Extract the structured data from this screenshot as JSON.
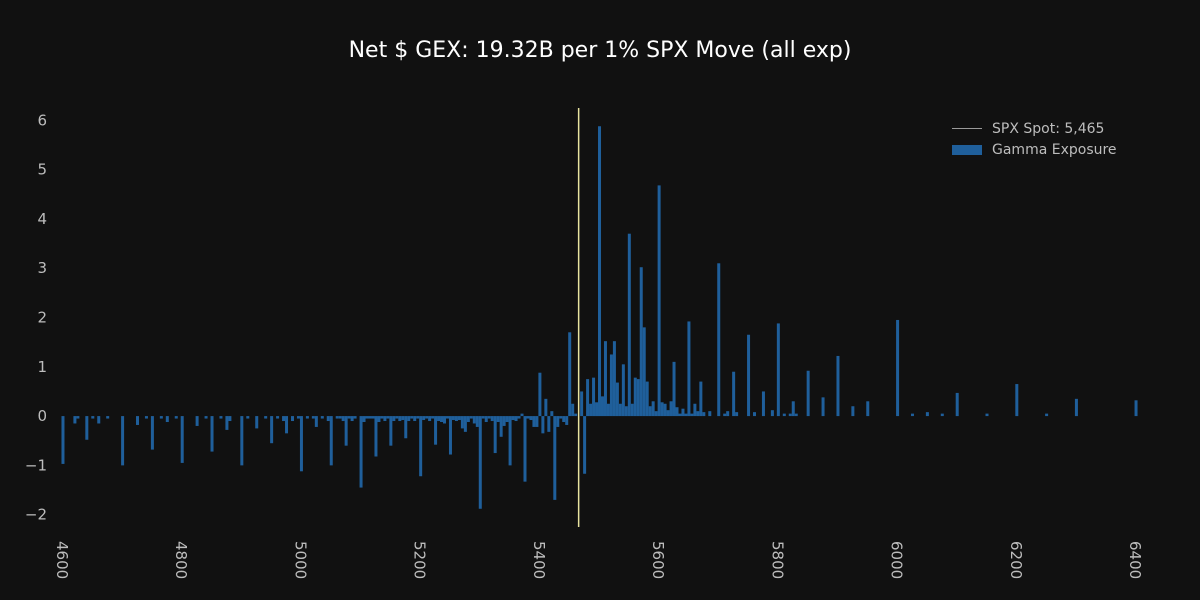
{
  "chart_data": {
    "type": "bar",
    "title": "Net $ GEX: 19.32B per 1% SPX Move (all exp)",
    "xlabel": "",
    "ylabel": "",
    "xlim": [
      4595,
      6410
    ],
    "ylim": [
      -2.25,
      6.25
    ],
    "x_ticks": [
      4600,
      4800,
      5000,
      5200,
      5400,
      5600,
      5800,
      6000,
      6200,
      6400
    ],
    "y_ticks": [
      -2,
      -1,
      0,
      1,
      2,
      3,
      4,
      5,
      6
    ],
    "grid": false,
    "legend_position": "top-right",
    "colors": {
      "background": "#111111",
      "bar": "#1f5f9b",
      "spot_line": "#e8e4a0",
      "text": "#bdbdbd",
      "title": "#ffffff"
    },
    "spot": {
      "label": "SPX Spot: 5,465",
      "value": 5465
    },
    "series": [
      {
        "name": "Gamma Exposure",
        "points": [
          [
            4600,
            -0.97
          ],
          [
            4620,
            -0.15
          ],
          [
            4625,
            -0.05
          ],
          [
            4640,
            -0.48
          ],
          [
            4650,
            -0.05
          ],
          [
            4660,
            -0.15
          ],
          [
            4675,
            -0.05
          ],
          [
            4700,
            -1.0
          ],
          [
            4725,
            -0.18
          ],
          [
            4740,
            -0.05
          ],
          [
            4750,
            -0.68
          ],
          [
            4765,
            -0.05
          ],
          [
            4775,
            -0.12
          ],
          [
            4790,
            -0.05
          ],
          [
            4800,
            -0.95
          ],
          [
            4825,
            -0.2
          ],
          [
            4840,
            -0.05
          ],
          [
            4850,
            -0.72
          ],
          [
            4865,
            -0.05
          ],
          [
            4875,
            -0.28
          ],
          [
            4880,
            -0.1
          ],
          [
            4900,
            -1.0
          ],
          [
            4910,
            -0.05
          ],
          [
            4925,
            -0.25
          ],
          [
            4940,
            -0.05
          ],
          [
            4950,
            -0.55
          ],
          [
            4960,
            -0.05
          ],
          [
            4970,
            -0.1
          ],
          [
            4975,
            -0.35
          ],
          [
            4985,
            -0.1
          ],
          [
            4995,
            -0.05
          ],
          [
            5000,
            -1.12
          ],
          [
            5010,
            -0.05
          ],
          [
            5020,
            -0.05
          ],
          [
            5025,
            -0.22
          ],
          [
            5035,
            -0.05
          ],
          [
            5045,
            -0.1
          ],
          [
            5050,
            -1.0
          ],
          [
            5060,
            -0.05
          ],
          [
            5065,
            -0.05
          ],
          [
            5070,
            -0.1
          ],
          [
            5075,
            -0.6
          ],
          [
            5080,
            -0.05
          ],
          [
            5085,
            -0.1
          ],
          [
            5090,
            -0.05
          ],
          [
            5100,
            -1.45
          ],
          [
            5105,
            -0.12
          ],
          [
            5110,
            -0.05
          ],
          [
            5115,
            -0.05
          ],
          [
            5120,
            -0.05
          ],
          [
            5125,
            -0.82
          ],
          [
            5130,
            -0.12
          ],
          [
            5135,
            -0.05
          ],
          [
            5140,
            -0.1
          ],
          [
            5145,
            -0.05
          ],
          [
            5150,
            -0.6
          ],
          [
            5155,
            -0.1
          ],
          [
            5160,
            -0.05
          ],
          [
            5165,
            -0.1
          ],
          [
            5170,
            -0.08
          ],
          [
            5175,
            -0.45
          ],
          [
            5180,
            -0.1
          ],
          [
            5185,
            -0.05
          ],
          [
            5190,
            -0.1
          ],
          [
            5195,
            -0.05
          ],
          [
            5200,
            -1.22
          ],
          [
            5205,
            -0.08
          ],
          [
            5210,
            -0.05
          ],
          [
            5215,
            -0.1
          ],
          [
            5220,
            -0.05
          ],
          [
            5225,
            -0.58
          ],
          [
            5230,
            -0.1
          ],
          [
            5235,
            -0.12
          ],
          [
            5240,
            -0.15
          ],
          [
            5245,
            -0.05
          ],
          [
            5250,
            -0.78
          ],
          [
            5255,
            -0.08
          ],
          [
            5260,
            -0.1
          ],
          [
            5265,
            -0.08
          ],
          [
            5270,
            -0.25
          ],
          [
            5275,
            -0.32
          ],
          [
            5280,
            -0.12
          ],
          [
            5285,
            -0.05
          ],
          [
            5290,
            -0.15
          ],
          [
            5295,
            -0.22
          ],
          [
            5300,
            -1.88
          ],
          [
            5305,
            -0.05
          ],
          [
            5310,
            -0.12
          ],
          [
            5315,
            -0.05
          ],
          [
            5320,
            -0.1
          ],
          [
            5325,
            -0.75
          ],
          [
            5330,
            -0.12
          ],
          [
            5335,
            -0.42
          ],
          [
            5340,
            -0.2
          ],
          [
            5345,
            -0.12
          ],
          [
            5350,
            -1.0
          ],
          [
            5355,
            -0.08
          ],
          [
            5360,
            -0.1
          ],
          [
            5365,
            -0.05
          ],
          [
            5370,
            0.05
          ],
          [
            5375,
            -1.33
          ],
          [
            5380,
            -0.05
          ],
          [
            5385,
            -0.08
          ],
          [
            5390,
            -0.22
          ],
          [
            5395,
            -0.22
          ],
          [
            5400,
            0.88
          ],
          [
            5405,
            -0.35
          ],
          [
            5410,
            0.35
          ],
          [
            5415,
            -0.32
          ],
          [
            5420,
            0.1
          ],
          [
            5425,
            -1.7
          ],
          [
            5430,
            -0.22
          ],
          [
            5435,
            -0.05
          ],
          [
            5440,
            -0.12
          ],
          [
            5445,
            -0.18
          ],
          [
            5450,
            1.7
          ],
          [
            5455,
            0.25
          ],
          [
            5460,
            0.05
          ],
          [
            5470,
            0.5
          ],
          [
            5475,
            -1.17
          ],
          [
            5480,
            0.75
          ],
          [
            5485,
            0.25
          ],
          [
            5490,
            0.78
          ],
          [
            5495,
            0.28
          ],
          [
            5500,
            5.88
          ],
          [
            5505,
            0.4
          ],
          [
            5510,
            1.52
          ],
          [
            5515,
            0.25
          ],
          [
            5520,
            1.25
          ],
          [
            5525,
            1.52
          ],
          [
            5530,
            0.68
          ],
          [
            5535,
            0.25
          ],
          [
            5540,
            1.05
          ],
          [
            5545,
            0.2
          ],
          [
            5550,
            3.7
          ],
          [
            5555,
            0.25
          ],
          [
            5560,
            0.78
          ],
          [
            5565,
            0.75
          ],
          [
            5570,
            3.02
          ],
          [
            5575,
            1.8
          ],
          [
            5580,
            0.7
          ],
          [
            5585,
            0.2
          ],
          [
            5590,
            0.3
          ],
          [
            5595,
            0.1
          ],
          [
            5600,
            4.68
          ],
          [
            5605,
            0.28
          ],
          [
            5610,
            0.25
          ],
          [
            5615,
            0.12
          ],
          [
            5620,
            0.3
          ],
          [
            5625,
            1.1
          ],
          [
            5630,
            0.18
          ],
          [
            5635,
            0.05
          ],
          [
            5640,
            0.15
          ],
          [
            5645,
            0.05
          ],
          [
            5650,
            1.92
          ],
          [
            5655,
            0.05
          ],
          [
            5660,
            0.25
          ],
          [
            5665,
            0.1
          ],
          [
            5670,
            0.7
          ],
          [
            5675,
            0.08
          ],
          [
            5685,
            0.1
          ],
          [
            5700,
            3.1
          ],
          [
            5710,
            0.05
          ],
          [
            5715,
            0.1
          ],
          [
            5725,
            0.9
          ],
          [
            5730,
            0.08
          ],
          [
            5750,
            1.65
          ],
          [
            5760,
            0.08
          ],
          [
            5775,
            0.5
          ],
          [
            5790,
            0.12
          ],
          [
            5800,
            1.88
          ],
          [
            5810,
            0.05
          ],
          [
            5820,
            0.05
          ],
          [
            5825,
            0.3
          ],
          [
            5830,
            0.05
          ],
          [
            5850,
            0.92
          ],
          [
            5875,
            0.38
          ],
          [
            5900,
            1.22
          ],
          [
            5925,
            0.2
          ],
          [
            5950,
            0.3
          ],
          [
            6000,
            1.95
          ],
          [
            6025,
            0.05
          ],
          [
            6050,
            0.08
          ],
          [
            6075,
            0.05
          ],
          [
            6100,
            0.47
          ],
          [
            6150,
            0.05
          ],
          [
            6200,
            0.65
          ],
          [
            6250,
            0.05
          ],
          [
            6300,
            0.35
          ],
          [
            6400,
            0.32
          ]
        ]
      }
    ]
  }
}
